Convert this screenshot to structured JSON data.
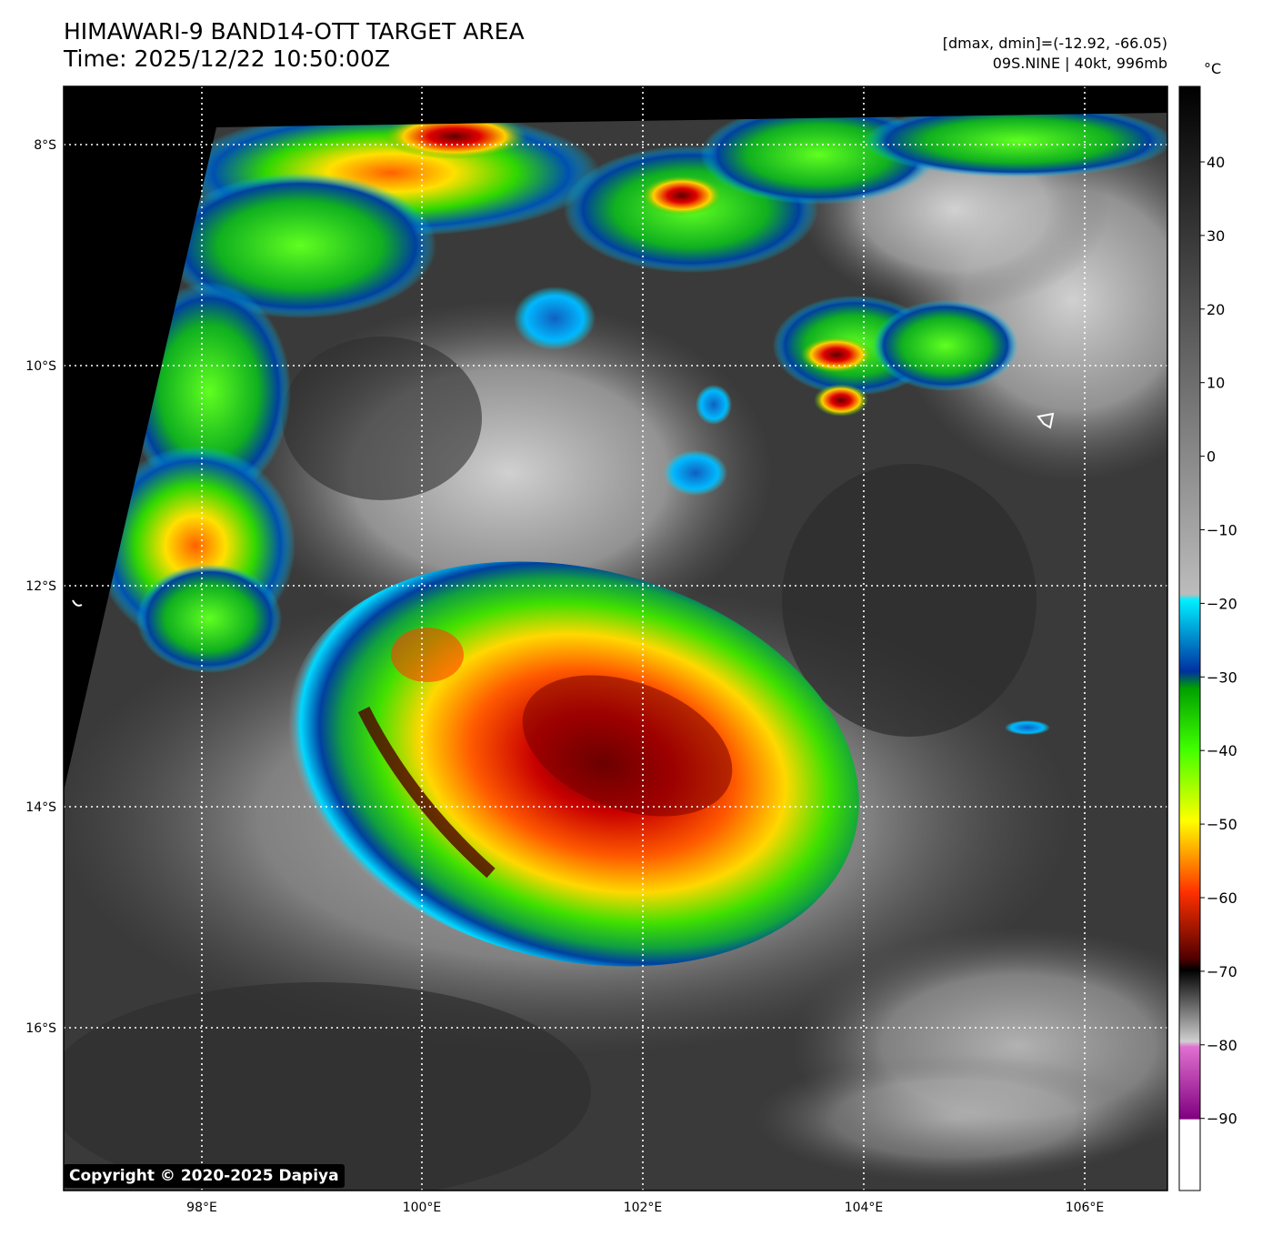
{
  "header": {
    "title": "HIMAWARI-9 BAND14-OTT TARGET AREA",
    "time": "Time: 2025/12/22 10:50:00Z",
    "range_text": "[dmax, dmin]=(-12.92, -66.05)",
    "storm_text": "09S.NINE | 40kt, 996mb"
  },
  "map": {
    "lat_labels": [
      "8°S",
      "10°S",
      "12°S",
      "14°S",
      "16°S"
    ],
    "lon_labels": [
      "98°E",
      "100°E",
      "102°E",
      "104°E",
      "106°E"
    ]
  },
  "colorbar": {
    "unit": "°C",
    "ticks": [
      "40",
      "30",
      "20",
      "10",
      "0",
      "−10",
      "−20",
      "−30",
      "−40",
      "−50",
      "−60",
      "−70",
      "−80",
      "−90"
    ]
  },
  "copyright": "Copyright © 2020-2025 Dapiya",
  "colors": {
    "cold_top": "#8b0000",
    "warm_ocean": "#3a3a3a",
    "background": "#000000"
  }
}
